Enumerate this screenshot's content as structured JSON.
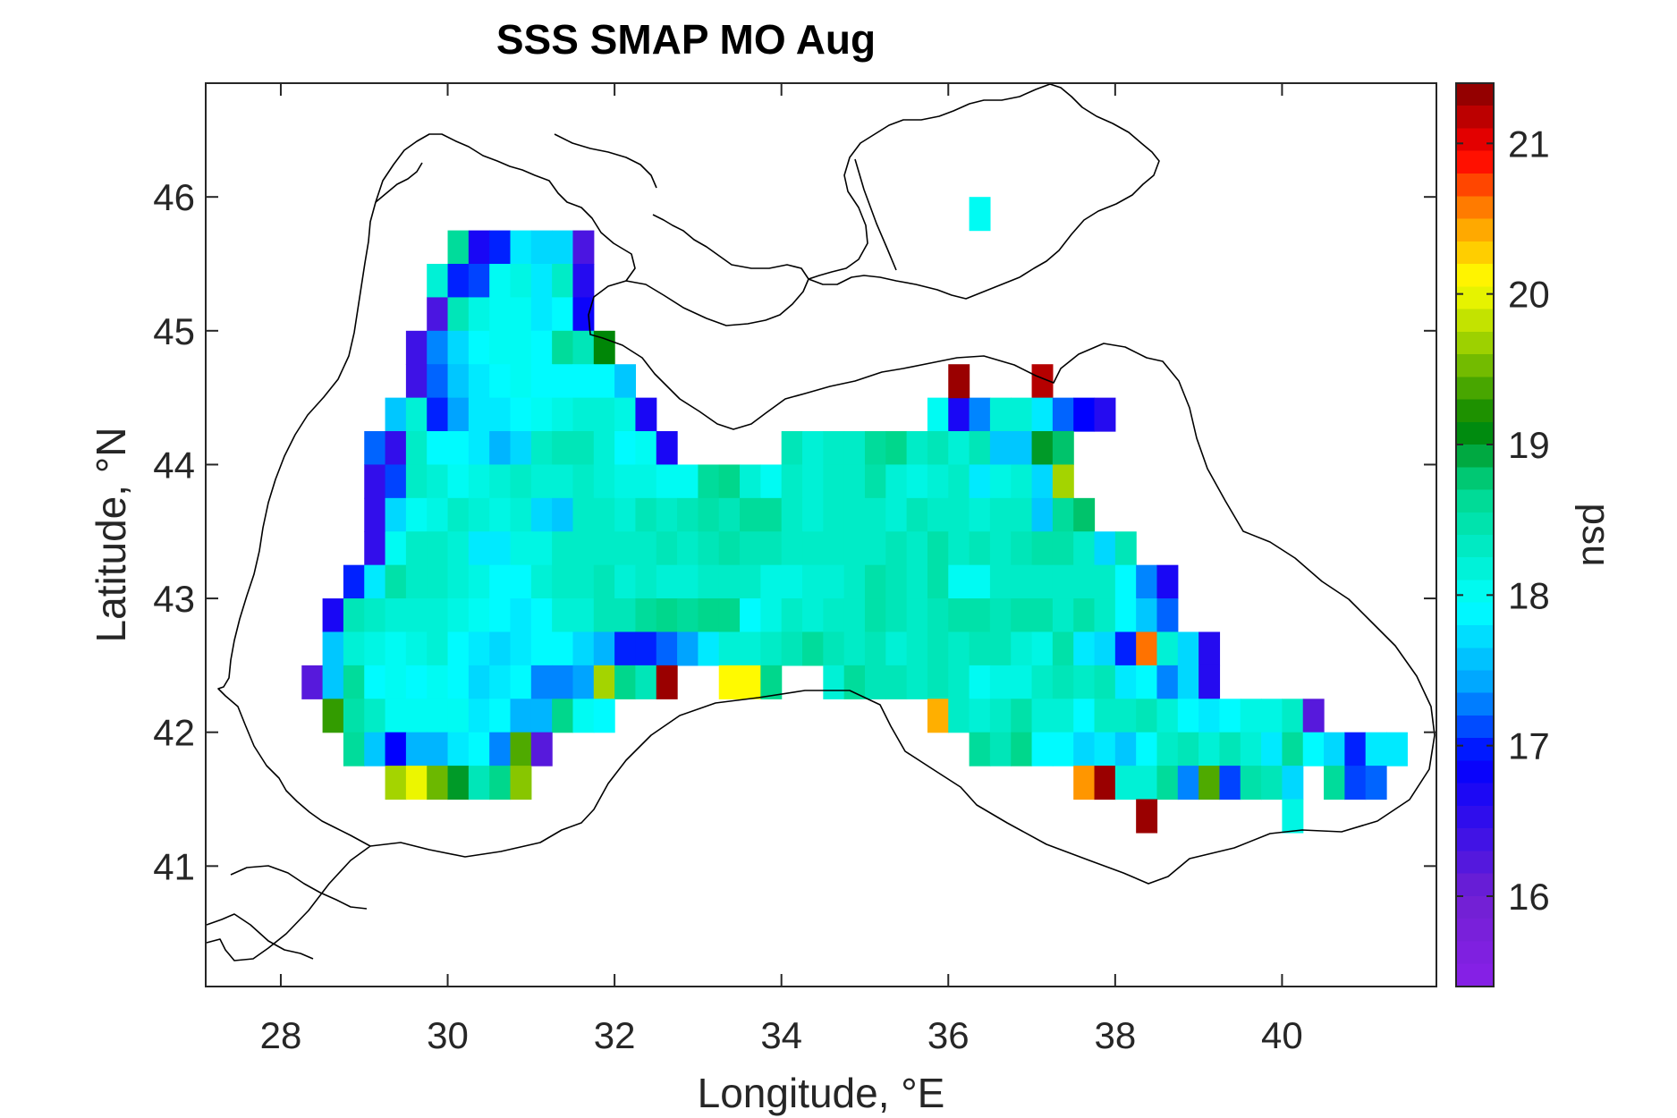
{
  "chart_data": {
    "type": "heatmap",
    "title": "SSS SMAP MO Aug",
    "xlabel": "Longitude, °E",
    "ylabel": "Latitude, °N",
    "xlim": [
      27.1,
      41.85
    ],
    "ylim": [
      40.1,
      46.85
    ],
    "xticks": [
      "28",
      "30",
      "32",
      "34",
      "36",
      "38",
      "40"
    ],
    "xtick_values": [
      28,
      30,
      32,
      34,
      36,
      38,
      40
    ],
    "yticks": [
      "41",
      "42",
      "43",
      "44",
      "45",
      "46"
    ],
    "ytick_values": [
      41,
      42,
      43,
      44,
      45,
      46
    ],
    "colorbar": {
      "label": "psu",
      "range": [
        15.4,
        21.4
      ],
      "ticks": [
        "16",
        "17",
        "18",
        "19",
        "20",
        "21"
      ],
      "tick_values": [
        16,
        17,
        18,
        19,
        20,
        21
      ],
      "colormap": "rainbow (violet-blue-cyan-green-yellow-red-darkred)"
    },
    "grid": {
      "lon_start": 28.375,
      "lon_step": 0.25,
      "lat_top": 45.625,
      "lat_step": 0.25,
      "encoding": "rows top to bottom; each row: [starting column index, values...]; null = no data"
    },
    "rows": [
      [
        7,
        18.6,
        16.7,
        17.0,
        17.8,
        17.7,
        17.7,
        16.3
      ],
      [
        6,
        18.2,
        17.0,
        17.1,
        18.0,
        18.1,
        17.8,
        18.3,
        16.6
      ],
      [
        6,
        16.3,
        18.4,
        18.1,
        18.0,
        18.0,
        17.8,
        17.9,
        16.8
      ],
      [
        5,
        16.4,
        17.3,
        17.7,
        17.9,
        18.0,
        18.0,
        17.9,
        18.6,
        18.4,
        19.1
      ],
      [
        5,
        16.4,
        17.2,
        17.6,
        17.8,
        17.9,
        18.0,
        17.9,
        17.9,
        17.9,
        17.9,
        17.6,
        null,
        null,
        null,
        null,
        null,
        null,
        null,
        null,
        null,
        null,
        null,
        null,
        null,
        null,
        null,
        null,
        null,
        null,
        null,
        21.2
      ],
      [
        4,
        17.6,
        18.2,
        17.0,
        17.4,
        17.8,
        17.8,
        17.9,
        18.0,
        18.1,
        18.2,
        18.2,
        18.1,
        16.7,
        null,
        null,
        null,
        null,
        null,
        null,
        null,
        null,
        null,
        null,
        null,
        null,
        null,
        18.0,
        16.7,
        17.3,
        18.2,
        18.2,
        17.8,
        17.2,
        16.9,
        16.6
      ],
      [
        3,
        17.2,
        16.5,
        18.3,
        17.9,
        17.9,
        17.8,
        17.5,
        17.7,
        18.3,
        18.4,
        18.4,
        18.2,
        17.9,
        18.0,
        16.7,
        null,
        null,
        null,
        null,
        null,
        18.4,
        18.2,
        18.3,
        18.3,
        18.6,
        18.7,
        18.3,
        18.4,
        18.2,
        18.4,
        17.6,
        17.6,
        19.0,
        18.8
      ],
      [
        3,
        16.5,
        17.1,
        18.3,
        18.2,
        18.0,
        18.1,
        18.2,
        18.3,
        18.2,
        18.2,
        18.3,
        18.2,
        18.1,
        18.1,
        18.0,
        18.0,
        18.6,
        18.7,
        18.2,
        18.0,
        18.3,
        18.2,
        18.3,
        18.3,
        18.5,
        18.2,
        18.1,
        18.2,
        18.3,
        17.8,
        18.1,
        18.2,
        17.7,
        19.7
      ],
      [
        3,
        16.5,
        17.7,
        18.0,
        18.1,
        18.3,
        18.2,
        18.1,
        18.2,
        17.7,
        17.6,
        18.3,
        18.3,
        18.2,
        18.4,
        18.3,
        18.4,
        18.5,
        18.4,
        18.6,
        18.6,
        18.3,
        18.2,
        18.3,
        18.3,
        18.3,
        18.2,
        18.4,
        18.3,
        18.3,
        18.2,
        18.3,
        18.3,
        17.6,
        18.6,
        18.8
      ],
      [
        3,
        16.5,
        18.0,
        18.3,
        18.3,
        18.2,
        17.8,
        17.8,
        18.1,
        18.1,
        18.3,
        18.3,
        18.3,
        18.3,
        18.3,
        18.4,
        18.3,
        18.4,
        18.5,
        18.4,
        18.4,
        18.3,
        18.3,
        18.3,
        18.3,
        18.3,
        18.4,
        18.3,
        18.5,
        18.3,
        18.4,
        18.3,
        18.4,
        18.5,
        18.5,
        18.3,
        17.7,
        18.4
      ],
      [
        2,
        17.0,
        17.8,
        18.5,
        18.3,
        18.3,
        18.2,
        18.1,
        17.9,
        17.9,
        18.2,
        18.3,
        18.3,
        18.4,
        18.2,
        18.3,
        18.2,
        18.2,
        18.3,
        18.3,
        18.3,
        18.1,
        18.1,
        18.2,
        18.2,
        18.3,
        18.5,
        18.4,
        18.3,
        18.5,
        18.0,
        18.0,
        18.3,
        18.3,
        18.3,
        18.3,
        18.3,
        18.3,
        17.9,
        17.3,
        16.7
      ],
      [
        1,
        16.7,
        18.4,
        18.3,
        18.2,
        18.2,
        18.2,
        18.1,
        18.0,
        17.9,
        17.8,
        17.9,
        18.2,
        18.2,
        18.4,
        18.4,
        18.6,
        18.7,
        18.6,
        18.7,
        18.7,
        17.9,
        18.1,
        18.3,
        18.2,
        18.3,
        18.3,
        18.5,
        18.4,
        18.3,
        18.4,
        18.5,
        18.5,
        18.4,
        18.5,
        18.5,
        18.3,
        18.5,
        18.3,
        17.9,
        17.6,
        17.2
      ],
      [
        1,
        17.6,
        18.2,
        18.1,
        18.0,
        18.1,
        18.2,
        17.9,
        17.8,
        17.7,
        17.8,
        17.9,
        17.9,
        17.7,
        17.5,
        17.0,
        17.0,
        17.2,
        17.4,
        17.8,
        18.2,
        18.2,
        18.3,
        18.4,
        18.6,
        18.4,
        18.3,
        18.4,
        18.2,
        18.3,
        18.4,
        18.3,
        18.4,
        18.4,
        18.2,
        18.1,
        18.5,
        17.8,
        17.7,
        17.0,
        20.6,
        18.2,
        17.7,
        16.6
      ],
      [
        0,
        16.2,
        17.6,
        18.6,
        17.9,
        18.0,
        17.9,
        18.0,
        17.9,
        17.7,
        17.8,
        17.9,
        17.3,
        17.3,
        17.4,
        19.7,
        18.7,
        18.4,
        21.3,
        null,
        null,
        20.1,
        20.1,
        18.7,
        null,
        null,
        18.2,
        18.6,
        18.4,
        18.4,
        18.3,
        18.4,
        18.3,
        18.0,
        18.1,
        18.1,
        18.3,
        18.4,
        18.3,
        18.4,
        17.8,
        17.9,
        17.3,
        17.7,
        16.6
      ],
      [
        1,
        19.3,
        18.5,
        18.3,
        18.0,
        18.0,
        18.0,
        18.0,
        17.8,
        17.9,
        17.5,
        17.5,
        18.7,
        18.0,
        17.9,
        null,
        null,
        null,
        null,
        null,
        null,
        null,
        null,
        null,
        null,
        null,
        null,
        null,
        null,
        null,
        20.4,
        18.3,
        18.2,
        18.3,
        18.5,
        18.2,
        18.2,
        17.9,
        18.3,
        18.3,
        18.4,
        18.2,
        17.9,
        17.8,
        17.9,
        18.1,
        18.1,
        18.3,
        16.2
      ],
      [
        2,
        18.6,
        17.6,
        16.9,
        17.5,
        17.5,
        17.8,
        17.9,
        17.3,
        19.4,
        16.2,
        null,
        null,
        null,
        null,
        null,
        null,
        null,
        null,
        null,
        null,
        null,
        null,
        null,
        null,
        null,
        null,
        null,
        null,
        null,
        null,
        18.6,
        18.4,
        18.7,
        17.9,
        17.9,
        17.7,
        17.8,
        17.6,
        17.9,
        18.3,
        18.4,
        18.2,
        18.4,
        18.2,
        17.8,
        18.6,
        17.9,
        17.7,
        17.0,
        17.8,
        17.8
      ],
      [
        4,
        19.7,
        20.0,
        19.5,
        19.0,
        18.4,
        18.7,
        19.6,
        null,
        null,
        null,
        null,
        null,
        null,
        null,
        null,
        null,
        null,
        null,
        null,
        null,
        null,
        null,
        null,
        null,
        null,
        null,
        null,
        null,
        null,
        null,
        null,
        null,
        null,
        20.5,
        21.3,
        18.2,
        18.2,
        18.6,
        17.3,
        19.4,
        17.1,
        18.5,
        18.4,
        17.7,
        null,
        18.6,
        17.1,
        17.2
      ],
      [
        40,
        21.3,
        null,
        null,
        null,
        null,
        null,
        null,
        18.1
      ]
    ],
    "isolated_cells": [
      {
        "lon": 36.375,
        "lat": 45.875,
        "value": 18.0
      },
      {
        "lon": 36.125,
        "lat": 44.625,
        "value": 21.3
      }
    ]
  }
}
